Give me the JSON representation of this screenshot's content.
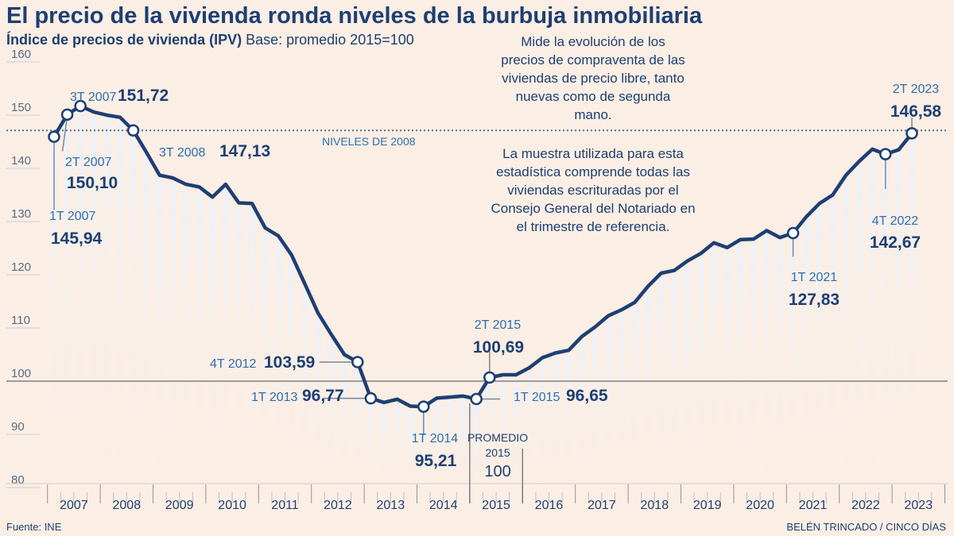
{
  "header": {
    "title": "El precio de la vivienda ronda niveles de la burbuja inmobiliaria",
    "subtitle_bold": "Índice de precios de vivienda (IPV)",
    "subtitle_rest": " Base: promedio 2015=100"
  },
  "notes": {
    "note1": "Mide la evolución de los precios de compraventa de las viviendas de precio libre, tanto nuevas como de segunda mano.",
    "note2": "La muestra utilizada para esta estadística comprende todas las viviendas escrituradas por el Consejo General del Notariado en el trimestre de referencia."
  },
  "footer": {
    "source": "Fuente: INE",
    "credit": "BELÉN TRINCADO / CINCO DÍAS"
  },
  "colors": {
    "background": "#fbeee4",
    "line": "#1d3f73",
    "text": "#1d3f73",
    "label": "#2c6fb0"
  },
  "chart_data": {
    "type": "line",
    "ylim": [
      80,
      160
    ],
    "yticks": [
      80,
      90,
      100,
      110,
      120,
      130,
      140,
      150,
      160
    ],
    "years": [
      "2007",
      "2008",
      "2009",
      "2010",
      "2011",
      "2012",
      "2013",
      "2014",
      "2015",
      "2016",
      "2017",
      "2018",
      "2019",
      "2020",
      "2021",
      "2022",
      "2023"
    ],
    "x_unit": "quarter",
    "x": [
      "1T 2007",
      "2T 2007",
      "3T 2007",
      "4T 2007",
      "1T 2008",
      "2T 2008",
      "3T 2008",
      "4T 2008",
      "1T 2009",
      "2T 2009",
      "3T 2009",
      "4T 2009",
      "1T 2010",
      "2T 2010",
      "3T 2010",
      "4T 2010",
      "1T 2011",
      "2T 2011",
      "3T 2011",
      "4T 2011",
      "1T 2012",
      "2T 2012",
      "3T 2012",
      "4T 2012",
      "1T 2013",
      "2T 2013",
      "3T 2013",
      "4T 2013",
      "1T 2014",
      "2T 2014",
      "3T 2014",
      "4T 2014",
      "1T 2015",
      "2T 2015",
      "3T 2015",
      "4T 2015",
      "1T 2016",
      "2T 2016",
      "3T 2016",
      "4T 2016",
      "1T 2017",
      "2T 2017",
      "3T 2017",
      "4T 2017",
      "1T 2018",
      "2T 2018",
      "3T 2018",
      "4T 2018",
      "1T 2019",
      "2T 2019",
      "3T 2019",
      "4T 2019",
      "1T 2020",
      "2T 2020",
      "3T 2020",
      "4T 2020",
      "1T 2021",
      "2T 2021",
      "3T 2021",
      "4T 2021",
      "1T 2022",
      "2T 2022",
      "3T 2022",
      "4T 2022",
      "1T 2023",
      "2T 2023"
    ],
    "series": [
      {
        "values": [
          145.94,
          150.1,
          151.72,
          150.6,
          150.0,
          149.6,
          147.13,
          143.0,
          138.7,
          138.2,
          137.0,
          136.5,
          134.6,
          137.0,
          133.5,
          133.4,
          128.8,
          127.3,
          123.7,
          118.3,
          112.8,
          108.8,
          105.0,
          103.59,
          96.77,
          96.0,
          96.6,
          95.3,
          95.21,
          96.8,
          97.0,
          97.2,
          96.65,
          100.69,
          101.2,
          101.2,
          102.5,
          104.4,
          105.3,
          105.8,
          108.4,
          110.2,
          112.3,
          113.4,
          114.8,
          117.8,
          120.3,
          120.8,
          122.6,
          124.0,
          126.0,
          125.1,
          126.6,
          126.7,
          128.3,
          127.0,
          127.83,
          130.9,
          133.4,
          135.0,
          138.7,
          141.3,
          143.6,
          142.67,
          143.5,
          146.58
        ]
      }
    ],
    "reference_lines": [
      {
        "y": 147.13,
        "label": "NIVELES DE 2008",
        "style": "dotted"
      },
      {
        "y": 100,
        "label": "",
        "style": "solid"
      }
    ],
    "baseline_annotation": {
      "label": "PROMEDIO 2015",
      "value": "100"
    },
    "annotations": [
      {
        "i": 0,
        "period": "1T 2007",
        "value": "145,94"
      },
      {
        "i": 1,
        "period": "2T 2007",
        "value": "150,10"
      },
      {
        "i": 2,
        "period": "3T 2007",
        "value": "151,72"
      },
      {
        "i": 6,
        "period": "3T 2008",
        "value": "147,13"
      },
      {
        "i": 23,
        "period": "4T 2012",
        "value": "103,59"
      },
      {
        "i": 24,
        "period": "1T 2013",
        "value": "96,77"
      },
      {
        "i": 28,
        "period": "1T 2014",
        "value": "95,21"
      },
      {
        "i": 32,
        "period": "1T 2015",
        "value": "96,65"
      },
      {
        "i": 33,
        "period": "2T 2015",
        "value": "100,69"
      },
      {
        "i": 56,
        "period": "1T 2021",
        "value": "127,83"
      },
      {
        "i": 63,
        "period": "4T 2022",
        "value": "142,67"
      },
      {
        "i": 65,
        "period": "2T 2023",
        "value": "146,58"
      }
    ]
  }
}
